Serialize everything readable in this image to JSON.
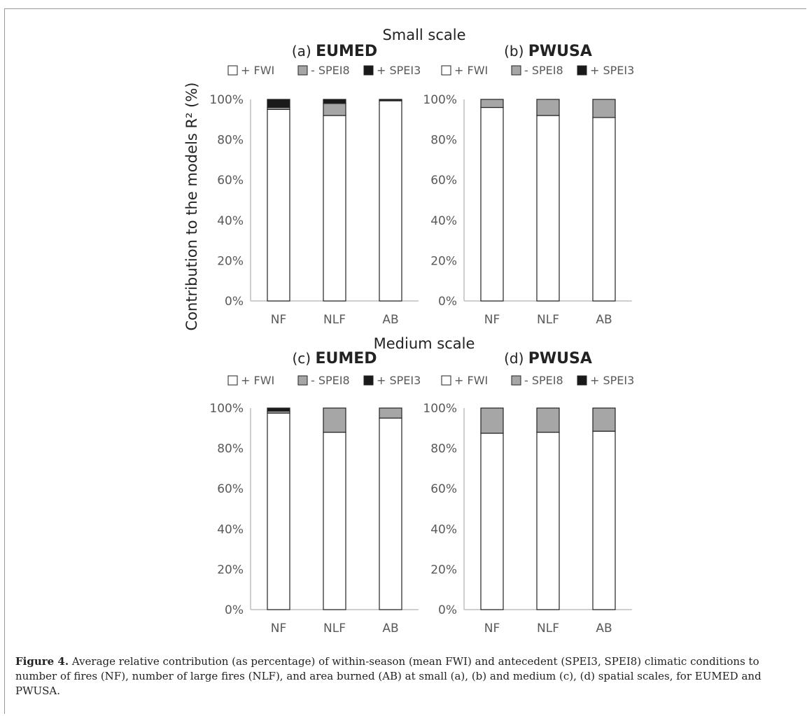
{
  "colors": {
    "fwi": "#ffffff",
    "spei8": "#a6a6a6",
    "spei3": "#1a1a1a",
    "bar_stroke": "#222222",
    "axis": "#bfbfbf",
    "tick_text": "#595959",
    "title_text": "#222222"
  },
  "sections": [
    {
      "scale_title": "Small scale"
    },
    {
      "scale_title": "Medium scale"
    }
  ],
  "y_axis_label": "Contribution to the models  R² (%)",
  "caption": {
    "label": "Figure 4.",
    "text": " Average relative contribution (as percentage) of within-season (mean FWI) and antecedent (SPEI3, SPEI8) climatic conditions to number of fires (NF), number of large fires (NLF), and area burned (AB) at small (a), (b) and medium (c), (d) spatial scales, for EUMED and PWUSA."
  },
  "chart_data": [
    {
      "type": "bar",
      "stacked": true,
      "panel": "(a)",
      "region": "EUMED",
      "scale": "Small scale",
      "categories": [
        "NF",
        "NLF",
        "AB"
      ],
      "legend": [
        "+ FWI",
        "- SPEI8",
        "+ SPEI3"
      ],
      "series": [
        {
          "name": "+ FWI",
          "values": [
            95,
            92,
            99.3
          ]
        },
        {
          "name": "- SPEI8",
          "values": [
            1,
            6,
            0.3
          ]
        },
        {
          "name": "+ SPEI3",
          "values": [
            4,
            2,
            0.4
          ]
        }
      ],
      "yticks": [
        "0%",
        "20%",
        "40%",
        "60%",
        "80%",
        "100%"
      ],
      "ylim": [
        0,
        100
      ]
    },
    {
      "type": "bar",
      "stacked": true,
      "panel": "(b)",
      "region": "PWUSA",
      "scale": "Small scale",
      "categories": [
        "NF",
        "NLF",
        "AB"
      ],
      "legend": [
        "+ FWI",
        "- SPEI8",
        "+ SPEI3"
      ],
      "series": [
        {
          "name": "+ FWI",
          "values": [
            96,
            92,
            91
          ]
        },
        {
          "name": "- SPEI8",
          "values": [
            4,
            8,
            9
          ]
        },
        {
          "name": "+ SPEI3",
          "values": [
            0,
            0,
            0
          ]
        }
      ],
      "yticks": [
        "0%",
        "20%",
        "40%",
        "60%",
        "80%",
        "100%"
      ],
      "ylim": [
        0,
        100
      ]
    },
    {
      "type": "bar",
      "stacked": true,
      "panel": "(c)",
      "region": "EUMED",
      "scale": "Medium scale",
      "categories": [
        "NF",
        "NLF",
        "AB"
      ],
      "legend": [
        "+ FWI",
        "- SPEI8",
        "+ SPEI3"
      ],
      "series": [
        {
          "name": "+ FWI",
          "values": [
            97.5,
            88,
            95
          ]
        },
        {
          "name": "- SPEI8",
          "values": [
            1,
            12,
            5
          ]
        },
        {
          "name": "+ SPEI3",
          "values": [
            1.5,
            0,
            0
          ]
        }
      ],
      "yticks": [
        "0%",
        "20%",
        "40%",
        "60%",
        "80%",
        "100%"
      ],
      "ylim": [
        0,
        100
      ]
    },
    {
      "type": "bar",
      "stacked": true,
      "panel": "(d)",
      "region": "PWUSA",
      "scale": "Medium scale",
      "categories": [
        "NF",
        "NLF",
        "AB"
      ],
      "legend": [
        "+ FWI",
        "- SPEI8",
        "+ SPEI3"
      ],
      "series": [
        {
          "name": "+ FWI",
          "values": [
            87.5,
            88,
            88.5
          ]
        },
        {
          "name": "- SPEI8",
          "values": [
            12.5,
            12,
            11.5
          ]
        },
        {
          "name": "+ SPEI3",
          "values": [
            0,
            0,
            0
          ]
        }
      ],
      "yticks": [
        "0%",
        "20%",
        "40%",
        "60%",
        "80%",
        "100%"
      ],
      "ylim": [
        0,
        100
      ]
    }
  ]
}
